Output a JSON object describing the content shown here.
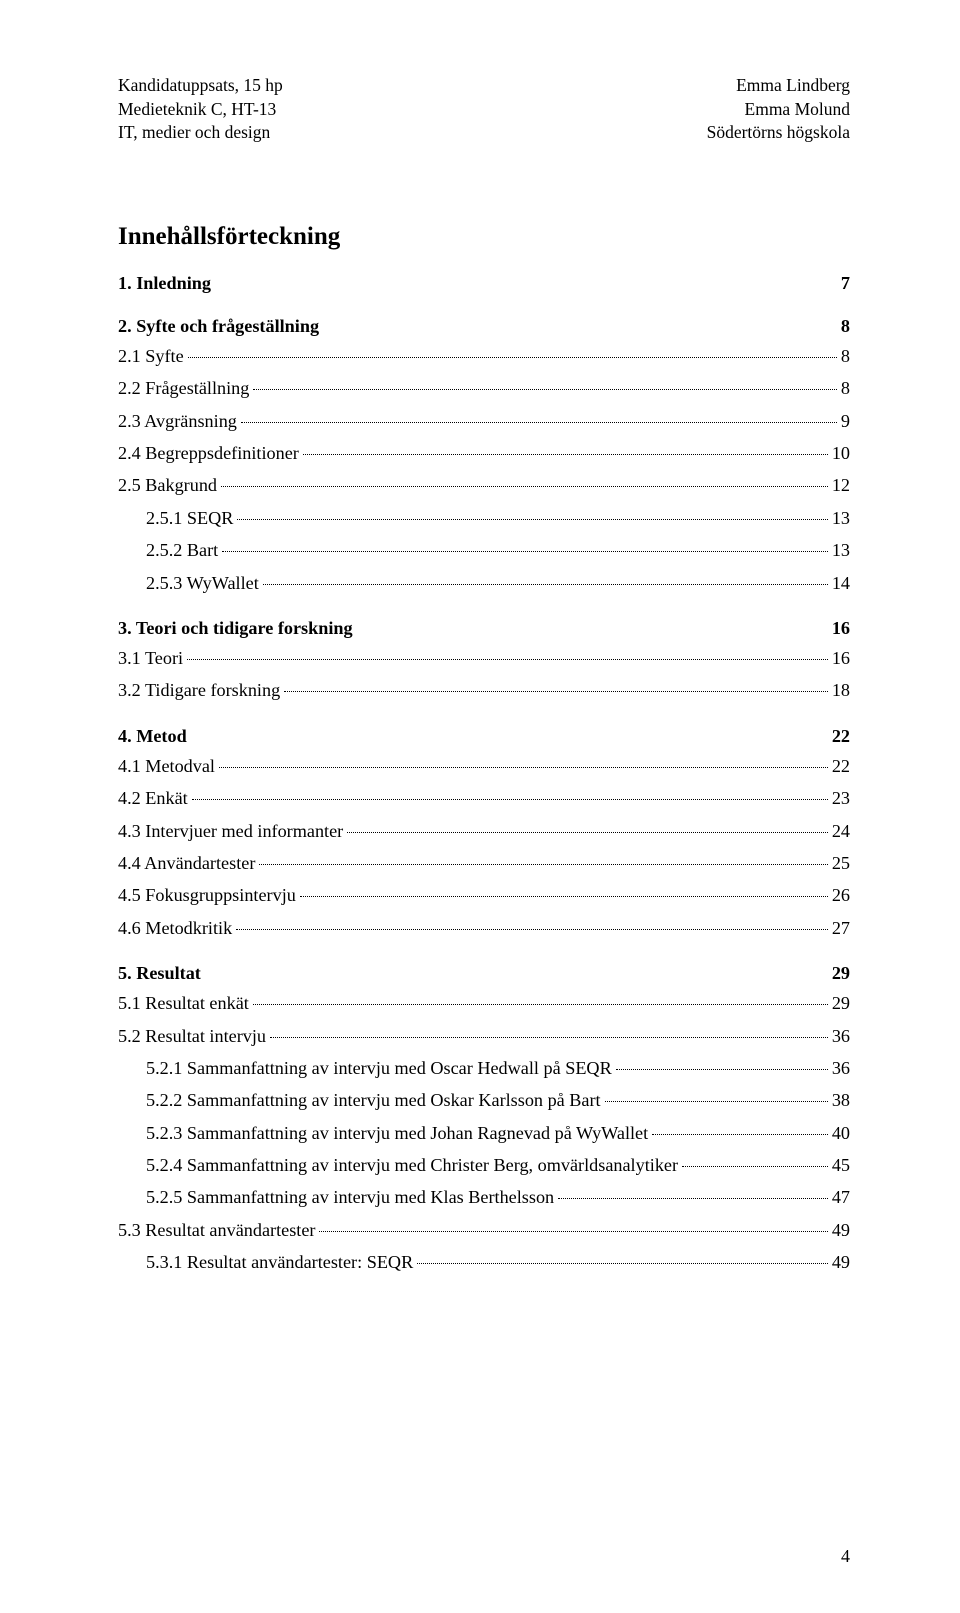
{
  "header": {
    "left_lines": [
      "Kandidatuppsats, 15 hp",
      "Medieteknik C, HT-13",
      "IT, medier och design"
    ],
    "right_lines": [
      "Emma Lindberg",
      "Emma Molund",
      "Södertörns högskola"
    ]
  },
  "title": "Innehållsförteckning",
  "page_number": "4",
  "toc": [
    {
      "type": "section",
      "label": "1. Inledning",
      "page": "7"
    },
    {
      "type": "section",
      "label": "2. Syfte och frågeställning",
      "page": "8"
    },
    {
      "type": "entry",
      "level": 2,
      "label": "2.1 Syfte",
      "page": "8"
    },
    {
      "type": "entry",
      "level": 2,
      "label": "2.2 Frågeställning",
      "page": "8"
    },
    {
      "type": "entry",
      "level": 2,
      "label": "2.3 Avgränsning",
      "page": "9"
    },
    {
      "type": "entry",
      "level": 2,
      "label": "2.4 Begreppsdefinitioner",
      "page": "10"
    },
    {
      "type": "entry",
      "level": 2,
      "label": "2.5 Bakgrund",
      "page": "12"
    },
    {
      "type": "entry",
      "level": 3,
      "label": "2.5.1 SEQR",
      "page": "13"
    },
    {
      "type": "entry",
      "level": 3,
      "label": "2.5.2 Bart",
      "page": "13"
    },
    {
      "type": "entry",
      "level": 3,
      "label": "2.5.3 WyWallet",
      "page": "14"
    },
    {
      "type": "section",
      "label": "3. Teori och tidigare forskning",
      "page": "16"
    },
    {
      "type": "entry",
      "level": 2,
      "label": "3.1 Teori",
      "page": "16"
    },
    {
      "type": "entry",
      "level": 2,
      "label": "3.2 Tidigare forskning",
      "page": "18"
    },
    {
      "type": "section",
      "label": "4. Metod",
      "page": "22"
    },
    {
      "type": "entry",
      "level": 2,
      "label": "4.1 Metodval",
      "page": "22"
    },
    {
      "type": "entry",
      "level": 2,
      "label": "4.2 Enkät",
      "page": "23"
    },
    {
      "type": "entry",
      "level": 2,
      "label": "4.3 Intervjuer med informanter",
      "page": "24"
    },
    {
      "type": "entry",
      "level": 2,
      "label": "4.4 Användartester",
      "page": "25"
    },
    {
      "type": "entry",
      "level": 2,
      "label": "4.5 Fokusgruppsintervju",
      "page": "26"
    },
    {
      "type": "entry",
      "level": 2,
      "label": "4.6  Metodkritik",
      "page": "27"
    },
    {
      "type": "section",
      "label": "5. Resultat",
      "page": "29"
    },
    {
      "type": "entry",
      "level": 2,
      "label": "5.1 Resultat enkät",
      "page": "29"
    },
    {
      "type": "entry",
      "level": 2,
      "label": "5.2 Resultat intervju",
      "page": "36"
    },
    {
      "type": "entry",
      "level": 3,
      "label": "5.2.1 Sammanfattning av intervju med Oscar Hedwall på SEQR",
      "page": "36"
    },
    {
      "type": "entry",
      "level": 3,
      "label": "5.2.2 Sammanfattning av intervju med Oskar Karlsson på Bart",
      "page": "38"
    },
    {
      "type": "entry",
      "level": 3,
      "label": "5.2.3 Sammanfattning av intervju med Johan Ragnevad på WyWallet",
      "page": "40"
    },
    {
      "type": "entry",
      "level": 3,
      "label": "5.2.4 Sammanfattning av intervju med Christer Berg, omvärldsanalytiker",
      "page": "45"
    },
    {
      "type": "entry",
      "level": 3,
      "label": "5.2.5 Sammanfattning av intervju med Klas Berthelsson",
      "page": "47"
    },
    {
      "type": "entry",
      "level": 2,
      "label": "5.3 Resultat användartester",
      "page": "49"
    },
    {
      "type": "entry",
      "level": 3,
      "label": "5.3.1 Resultat användartester: SEQR",
      "page": "49"
    }
  ]
}
